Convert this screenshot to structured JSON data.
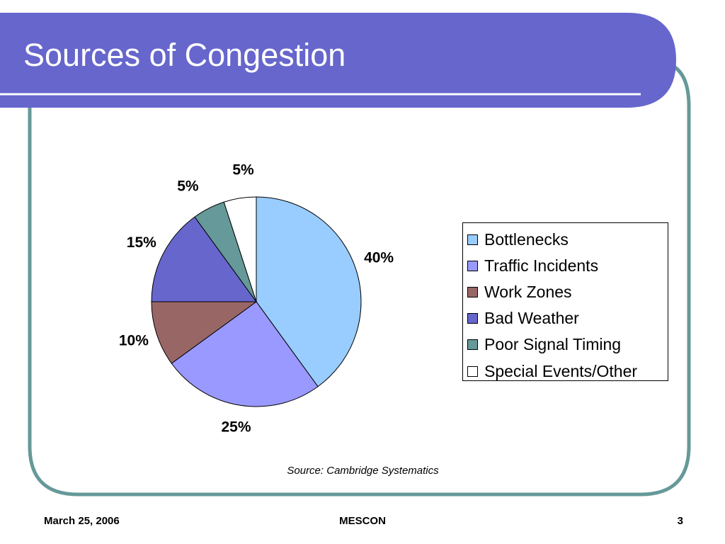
{
  "slide": {
    "title": "Sources of Congestion",
    "source": "Source: Cambridge Systematics"
  },
  "footer": {
    "date": "March 25, 2006",
    "org": "MESCON",
    "page": "3"
  },
  "colors": {
    "title_bar": "#6666cc",
    "frame_line": "#669999"
  },
  "chart_data": {
    "type": "pie",
    "categories": [
      "Bottlenecks",
      "Traffic Incidents",
      "Work Zones",
      "Bad Weather",
      "Poor Signal Timing",
      "Special Events/Other"
    ],
    "values": [
      40,
      25,
      10,
      15,
      5,
      5
    ],
    "data_labels": [
      "40%",
      "25%",
      "10%",
      "15%",
      "5%",
      "5%"
    ],
    "colors": [
      "#99ccff",
      "#9999ff",
      "#996666",
      "#6666cc",
      "#669999",
      "#ffffff"
    ],
    "legend_position": "right",
    "start_angle_deg": 0,
    "direction": "clockwise"
  }
}
